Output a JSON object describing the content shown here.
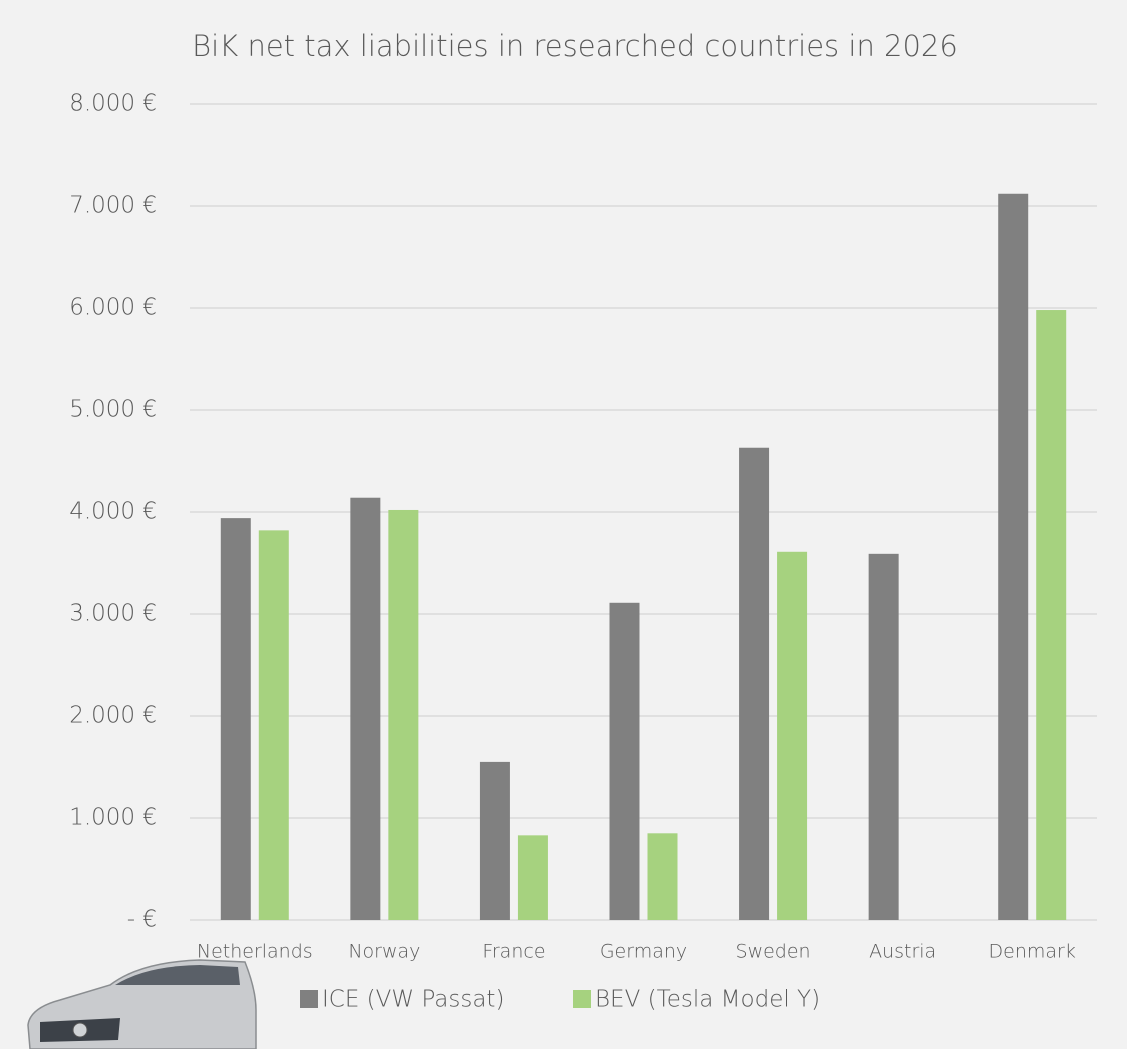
{
  "chart_data": {
    "type": "bar",
    "title": "BiK net tax liabilities in researched countries in 2026",
    "categories": [
      "Netherlands",
      "Norway",
      "France",
      "Germany",
      "Sweden",
      "Austria",
      "Denmark"
    ],
    "series": [
      {
        "name": "ICE (VW Passat)",
        "color": "#808080",
        "values": [
          3940,
          4140,
          1550,
          3110,
          4630,
          3590,
          7120
        ]
      },
      {
        "name": "BEV (Tesla Model Y)",
        "color": "#a6d27f",
        "values": [
          3820,
          4020,
          830,
          850,
          3610,
          0,
          5980
        ]
      }
    ],
    "ylim": [
      0,
      8000
    ],
    "yticks": [
      {
        "value": 0,
        "label": "-   €"
      },
      {
        "value": 1000,
        "label": "1.000 €"
      },
      {
        "value": 2000,
        "label": "2.000 €"
      },
      {
        "value": 3000,
        "label": "3.000 €"
      },
      {
        "value": 4000,
        "label": "4.000 €"
      },
      {
        "value": 5000,
        "label": "5.000 €"
      },
      {
        "value": 6000,
        "label": "6.000 €"
      },
      {
        "value": 7000,
        "label": "7.000 €"
      },
      {
        "value": 8000,
        "label": "8.000 €"
      }
    ],
    "grid": true,
    "legend": "bottom"
  }
}
